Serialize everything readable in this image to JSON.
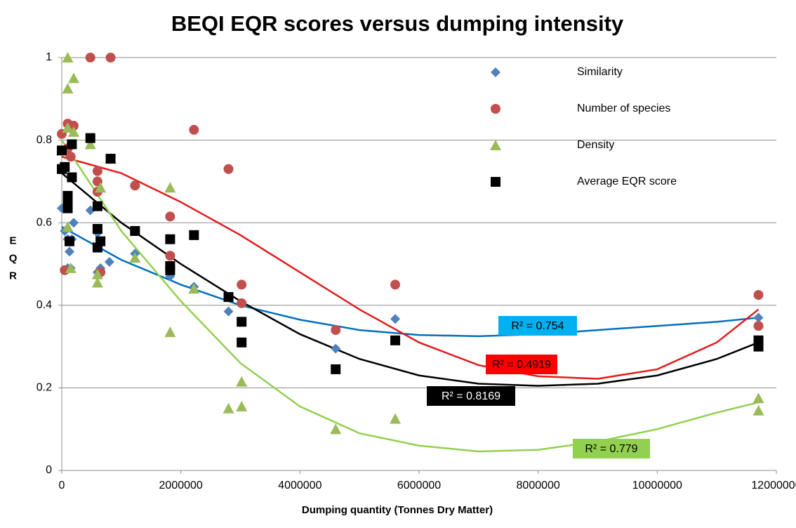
{
  "chart_data": {
    "type": "scatter",
    "title": "BEQI  EQR scores versus dumping intensity",
    "x_label": "Dumping quantity (Tonnes Dry Matter)",
    "y_label": "EQR",
    "xlim": [
      0,
      12000000
    ],
    "xticks": [
      0,
      2000000,
      4000000,
      6000000,
      8000000,
      10000000,
      12000000
    ],
    "ylim": [
      0,
      1
    ],
    "yticks": [
      0,
      0.2,
      0.4,
      0.6,
      0.8,
      1
    ],
    "grid": true,
    "legend": "upper right",
    "series": [
      {
        "name": "Similarity",
        "color": "#4f81bd",
        "marker": "diamond",
        "x": [
          0,
          0,
          50000,
          100000,
          100000,
          130000,
          150000,
          200000,
          170000,
          480000,
          600000,
          600000,
          650000,
          800000,
          1230000,
          1820000,
          2220000,
          2800000,
          3020000,
          4600000,
          5600000,
          11700000
        ],
        "values": [
          0.735,
          0.635,
          0.58,
          0.56,
          0.49,
          0.53,
          0.49,
          0.6,
          0.56,
          0.63,
          0.575,
          0.48,
          0.49,
          0.505,
          0.525,
          0.47,
          0.445,
          0.385,
          0.36,
          0.295,
          0.367,
          0.37
        ]
      },
      {
        "name": "Number of species",
        "color": "#c0504d",
        "marker": "circle",
        "x": [
          0,
          100000,
          100000,
          150000,
          200000,
          50000,
          480000,
          820000,
          600000,
          600000,
          600000,
          650000,
          1230000,
          1820000,
          1820000,
          2220000,
          2800000,
          3020000,
          3020000,
          4600000,
          5600000,
          11700000,
          11700000
        ],
        "values": [
          0.815,
          0.84,
          0.78,
          0.76,
          0.835,
          0.485,
          1,
          1,
          0.725,
          0.7,
          0.675,
          0.48,
          0.69,
          0.615,
          0.52,
          0.825,
          0.73,
          0.45,
          0.405,
          0.34,
          0.45,
          0.425,
          0.35
        ]
      },
      {
        "name": "Density",
        "color": "#9bbb59",
        "marker": "triangle",
        "x": [
          100000,
          100000,
          200000,
          0,
          100000,
          200000,
          480000,
          820000,
          650000,
          600000,
          600000,
          100000,
          150000,
          1230000,
          1820000,
          1820000,
          2220000,
          2800000,
          3020000,
          3020000,
          4600000,
          5600000,
          11700000,
          11700000
        ],
        "values": [
          1,
          0.925,
          0.95,
          0.775,
          0.83,
          0.82,
          0.79,
          0.755,
          0.685,
          0.475,
          0.455,
          0.59,
          0.49,
          0.515,
          0.685,
          0.335,
          0.44,
          0.15,
          0.155,
          0.215,
          0.1,
          0.125,
          0.175,
          0.145
        ]
      },
      {
        "name": "Average EQR score",
        "color": "#000000",
        "marker": "square",
        "x": [
          0,
          0,
          50000,
          100000,
          100000,
          100000,
          130000,
          170000,
          170000,
          480000,
          820000,
          600000,
          600000,
          650000,
          600000,
          1230000,
          1820000,
          1820000,
          1820000,
          2220000,
          2800000,
          3020000,
          3020000,
          4600000,
          5600000,
          11700000,
          11700000
        ],
        "values": [
          0.775,
          0.73,
          0.735,
          0.665,
          0.65,
          0.635,
          0.555,
          0.79,
          0.71,
          0.805,
          0.755,
          0.64,
          0.585,
          0.555,
          0.54,
          0.58,
          0.56,
          0.495,
          0.485,
          0.57,
          0.42,
          0.36,
          0.31,
          0.245,
          0.315,
          0.315,
          0.3
        ]
      }
    ],
    "trendlines": [
      {
        "label": "R² = 0.754",
        "color": "#0070c0",
        "box_color": "#00b0f0",
        "text_color": "#000000",
        "x": [
          0,
          1000000,
          2000000,
          3000000,
          4000000,
          5000000,
          6000000,
          7000000,
          8000000,
          9000000,
          10000000,
          11000000,
          11700000
        ],
        "values": [
          0.59,
          0.51,
          0.45,
          0.4,
          0.365,
          0.34,
          0.328,
          0.325,
          0.33,
          0.34,
          0.35,
          0.36,
          0.37
        ]
      },
      {
        "label": "R² = 0.4919",
        "color": "#e31b1b",
        "box_color": "#ff0000",
        "text_color": "#000000",
        "x": [
          0,
          1000000,
          2000000,
          3000000,
          4000000,
          5000000,
          6000000,
          7000000,
          8000000,
          9000000,
          10000000,
          11000000,
          11700000
        ],
        "values": [
          0.76,
          0.72,
          0.65,
          0.57,
          0.48,
          0.39,
          0.31,
          0.255,
          0.228,
          0.222,
          0.245,
          0.31,
          0.39
        ]
      },
      {
        "label": "R² = 0.8169",
        "color": "#000000",
        "box_color": "#000000",
        "text_color": "#ffffff",
        "x": [
          0,
          1000000,
          2000000,
          3000000,
          4000000,
          5000000,
          6000000,
          7000000,
          8000000,
          9000000,
          10000000,
          11000000,
          11700000
        ],
        "values": [
          0.72,
          0.6,
          0.5,
          0.41,
          0.33,
          0.27,
          0.23,
          0.21,
          0.205,
          0.21,
          0.23,
          0.27,
          0.31
        ]
      },
      {
        "label": "R² = 0.779",
        "color": "#92d050",
        "box_color": "#92d050",
        "text_color": "#000000",
        "x": [
          0,
          1000000,
          2000000,
          3000000,
          4000000,
          5000000,
          6000000,
          7000000,
          8000000,
          9000000,
          10000000,
          11000000,
          11700000
        ],
        "values": [
          0.8,
          0.58,
          0.41,
          0.26,
          0.155,
          0.09,
          0.06,
          0.046,
          0.05,
          0.07,
          0.1,
          0.14,
          0.165
        ]
      }
    ]
  }
}
